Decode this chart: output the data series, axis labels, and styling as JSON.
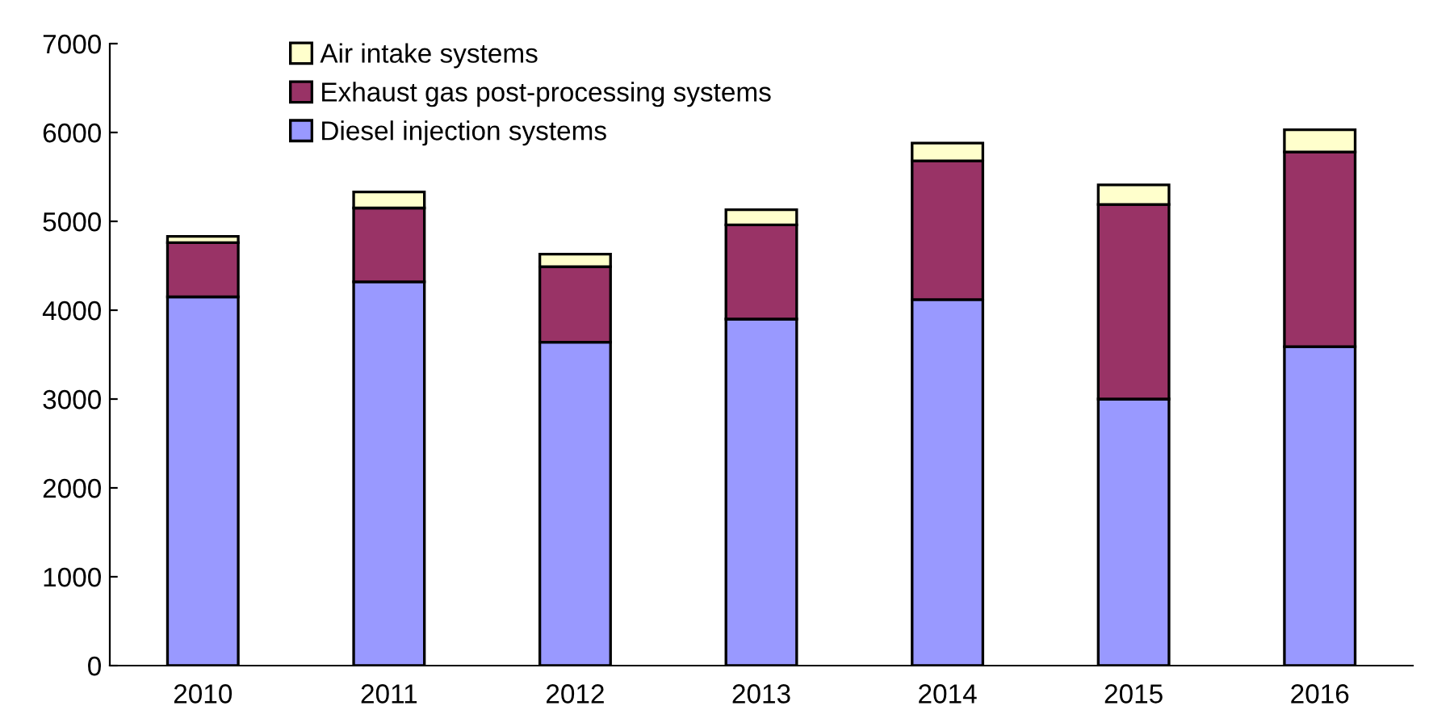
{
  "chart_data": {
    "type": "bar",
    "stacked": true,
    "categories": [
      "2010",
      "2011",
      "2012",
      "2013",
      "2014",
      "2015",
      "2016"
    ],
    "series": [
      {
        "name": "Diesel injection systems",
        "color": "#9999ff",
        "values": [
          4150,
          4320,
          3640,
          3900,
          4120,
          3000,
          3590
        ]
      },
      {
        "name": "Exhaust gas post-processing systems",
        "color": "#993366",
        "values": [
          610,
          830,
          850,
          1060,
          1560,
          2190,
          2190
        ]
      },
      {
        "name": "Air intake systems",
        "color": "#ffffcc",
        "values": [
          70,
          180,
          140,
          170,
          200,
          220,
          250
        ]
      }
    ],
    "ylim": [
      0,
      7000
    ],
    "yticks": [
      0,
      1000,
      2000,
      3000,
      4000,
      5000,
      6000,
      7000
    ],
    "grid": false,
    "legend": "top left"
  }
}
